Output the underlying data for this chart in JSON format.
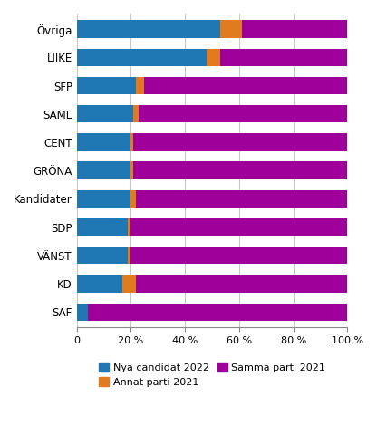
{
  "categories": [
    "SAF",
    "KD",
    "VÄNST",
    "SDP",
    "Kandidater",
    "GRÖNA",
    "CENT",
    "SAML",
    "SFP",
    "LIIKE",
    "Övriga"
  ],
  "nya_candidat": [
    4,
    17,
    19,
    19,
    20,
    20,
    20,
    21,
    22,
    48,
    53
  ],
  "annat_parti": [
    0,
    5,
    1,
    1,
    2,
    1,
    1,
    2,
    3,
    5,
    8
  ],
  "samma_parti": [
    96,
    78,
    80,
    80,
    78,
    79,
    79,
    77,
    75,
    47,
    39
  ],
  "color_nya": "#1f77b4",
  "color_annat": "#e07b20",
  "color_samma": "#a0009a",
  "legend_nya": "Nya candidat 2022",
  "legend_annat": "Annat parti 2021",
  "legend_samma": "Samma parti 2021",
  "xtick_labels": [
    "0",
    "20 %",
    "40 %",
    "60 %",
    "80 %",
    "100 %"
  ],
  "xtick_vals": [
    0,
    20,
    40,
    60,
    80,
    100
  ],
  "background_color": "#ffffff",
  "grid_color": "#c8c8c8",
  "bar_height": 0.62
}
